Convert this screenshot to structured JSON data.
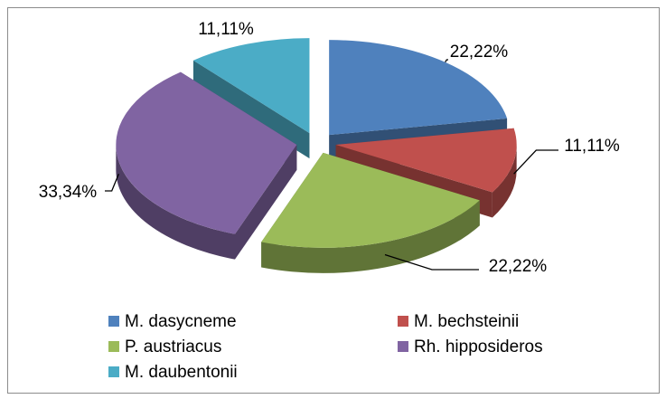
{
  "chart_data": {
    "type": "pie",
    "three_d": true,
    "exploded": true,
    "categories": [
      "M. dasycneme",
      "M. bechsteinii",
      "P. austriacus",
      "Rh. hipposideros",
      "M. daubentonii"
    ],
    "values": [
      22.22,
      11.11,
      22.22,
      33.34,
      11.11
    ],
    "value_labels": [
      "22,22%",
      "11,11%",
      "22,22%",
      "33,34%",
      "11,11%"
    ],
    "colors": [
      "#4f81bd",
      "#c0504d",
      "#9bbb59",
      "#8064a2",
      "#4bacc6"
    ],
    "legend": "bottom"
  }
}
